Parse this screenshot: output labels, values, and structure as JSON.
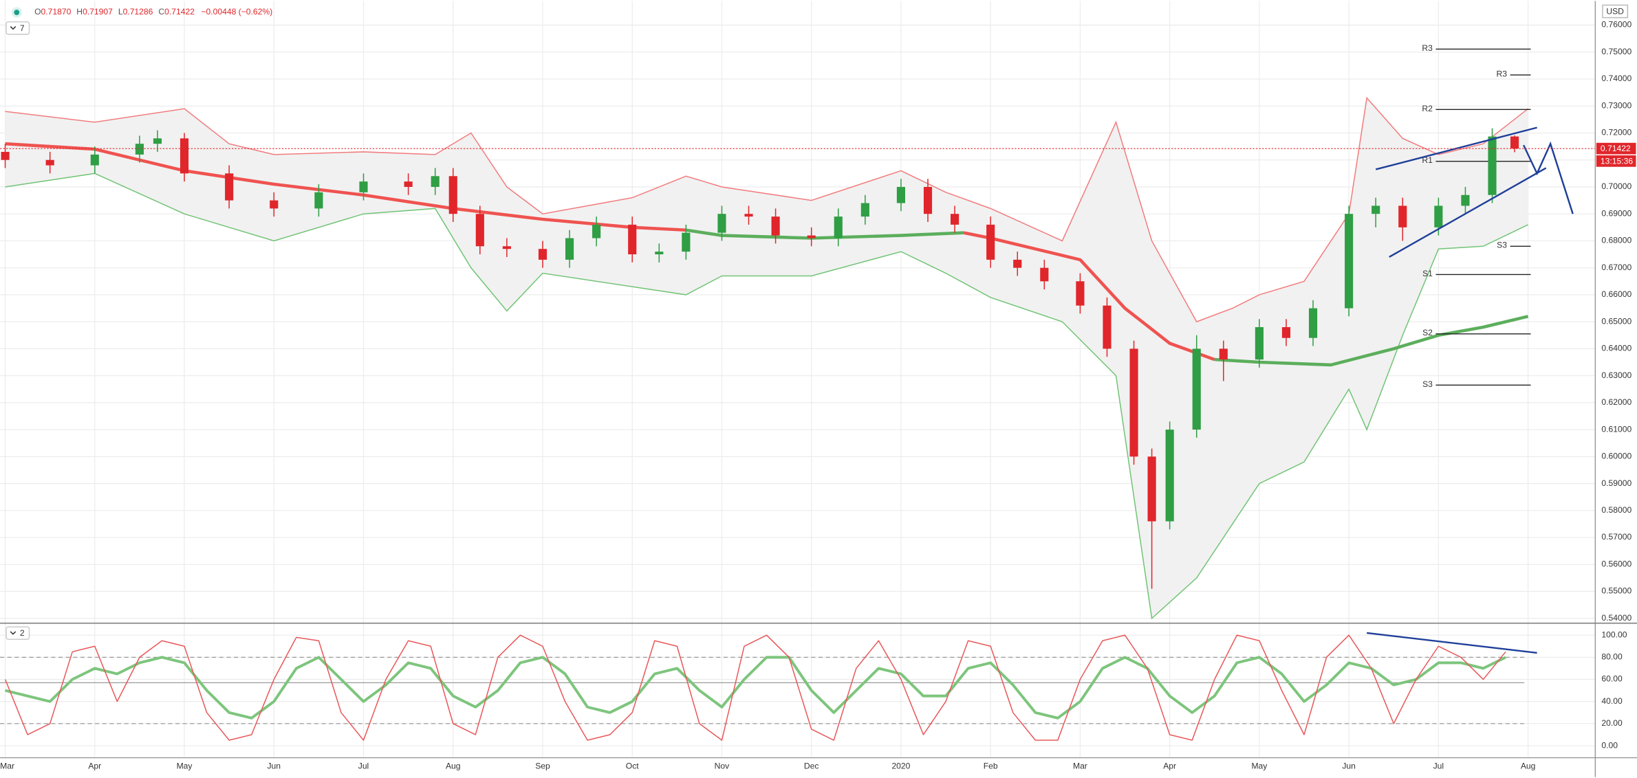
{
  "header": {
    "ohlc": [
      "O",
      "0.71870",
      "H",
      "0.71907",
      "L",
      "0.71286",
      "C",
      "0.71422"
    ],
    "change": "−0.00448 (−0.62%)",
    "top_pane_label": "7",
    "bottom_pane_label": "2",
    "currency": "USD"
  },
  "chart_data": [
    {
      "type": "candlestick",
      "up_color": "#2f9e44",
      "down_color": "#e0262b",
      "xlim": [
        -0.058,
        17.75
      ],
      "xticks": [
        {
          "value": 0,
          "label": "Mar"
        },
        {
          "value": 1,
          "label": "Apr"
        },
        {
          "value": 2,
          "label": "May"
        },
        {
          "value": 3,
          "label": "Jun"
        },
        {
          "value": 4,
          "label": "Jul"
        },
        {
          "value": 5,
          "label": "Aug"
        },
        {
          "value": 6,
          "label": "Sep"
        },
        {
          "value": 7,
          "label": "Oct"
        },
        {
          "value": 8,
          "label": "Nov"
        },
        {
          "value": 9,
          "label": "Dec"
        },
        {
          "value": 10,
          "label": "2020"
        },
        {
          "value": 11,
          "label": "Feb"
        },
        {
          "value": 12,
          "label": "Mar"
        },
        {
          "value": 13,
          "label": "Apr"
        },
        {
          "value": 14,
          "label": "May"
        },
        {
          "value": 15,
          "label": "Jun"
        },
        {
          "value": 16,
          "label": "Jul"
        },
        {
          "value": 17,
          "label": "Aug"
        }
      ],
      "ylim": [
        0.5388,
        0.762
      ],
      "yticks": [
        {
          "value": 0.54,
          "label": "0.54000"
        },
        {
          "value": 0.55,
          "label": "0.55000"
        },
        {
          "value": 0.56,
          "label": "0.56000"
        },
        {
          "value": 0.57,
          "label": "0.57000"
        },
        {
          "value": 0.58,
          "label": "0.58000"
        },
        {
          "value": 0.59,
          "label": "0.59000"
        },
        {
          "value": 0.6,
          "label": "0.60000"
        },
        {
          "value": 0.61,
          "label": "0.61000"
        },
        {
          "value": 0.62,
          "label": "0.62000"
        },
        {
          "value": 0.63,
          "label": "0.63000"
        },
        {
          "value": 0.64,
          "label": "0.64000"
        },
        {
          "value": 0.65,
          "label": "0.65000"
        },
        {
          "value": 0.66,
          "label": "0.66000"
        },
        {
          "value": 0.67,
          "label": "0.67000"
        },
        {
          "value": 0.68,
          "label": "0.68000"
        },
        {
          "value": 0.69,
          "label": "0.69000"
        },
        {
          "value": 0.7,
          "label": "0.70000"
        },
        {
          "value": 0.71,
          "label": "0.71000"
        },
        {
          "value": 0.72,
          "label": "0.72000"
        },
        {
          "value": 0.73,
          "label": "0.73000"
        },
        {
          "value": 0.74,
          "label": "0.74000"
        },
        {
          "value": 0.75,
          "label": "0.75000"
        },
        {
          "value": 0.76,
          "label": "0.76000"
        }
      ],
      "grid": true,
      "x": [
        0,
        0.5,
        1,
        1.5,
        1.7,
        2,
        2.5,
        3,
        3.5,
        4,
        4.5,
        4.8,
        5,
        5.3,
        5.6,
        6,
        6.3,
        6.6,
        7,
        7.3,
        7.6,
        8,
        8.3,
        8.6,
        9,
        9.3,
        9.6,
        10,
        10.3,
        10.6,
        11,
        11.3,
        11.6,
        12,
        12.3,
        12.6,
        12.8,
        13,
        13.3,
        13.6,
        14,
        14.3,
        14.6,
        15,
        15.3,
        15.6,
        16,
        16.3,
        16.6,
        16.85
      ],
      "open": [
        0.713,
        0.71,
        0.708,
        0.712,
        0.716,
        0.718,
        0.705,
        0.695,
        0.692,
        0.698,
        0.702,
        0.7,
        0.704,
        0.69,
        0.678,
        0.677,
        0.673,
        0.681,
        0.686,
        0.675,
        0.676,
        0.683,
        0.69,
        0.689,
        0.682,
        0.681,
        0.689,
        0.694,
        0.7,
        0.69,
        0.686,
        0.673,
        0.67,
        0.665,
        0.656,
        0.64,
        0.6,
        0.576,
        0.61,
        0.64,
        0.636,
        0.648,
        0.644,
        0.655,
        0.69,
        0.693,
        0.685,
        0.693,
        0.697,
        0.7187
      ],
      "high": [
        0.716,
        0.713,
        0.715,
        0.719,
        0.721,
        0.72,
        0.708,
        0.698,
        0.701,
        0.705,
        0.705,
        0.707,
        0.707,
        0.693,
        0.681,
        0.68,
        0.684,
        0.689,
        0.689,
        0.679,
        0.686,
        0.693,
        0.693,
        0.692,
        0.685,
        0.692,
        0.697,
        0.703,
        0.703,
        0.693,
        0.689,
        0.676,
        0.673,
        0.668,
        0.659,
        0.643,
        0.603,
        0.613,
        0.645,
        0.643,
        0.651,
        0.651,
        0.658,
        0.693,
        0.696,
        0.696,
        0.696,
        0.7,
        0.7217,
        0.71907
      ],
      "low": [
        0.707,
        0.705,
        0.705,
        0.709,
        0.713,
        0.702,
        0.692,
        0.689,
        0.689,
        0.695,
        0.697,
        0.697,
        0.687,
        0.675,
        0.674,
        0.67,
        0.67,
        0.678,
        0.672,
        0.672,
        0.673,
        0.68,
        0.686,
        0.679,
        0.678,
        0.678,
        0.686,
        0.691,
        0.687,
        0.683,
        0.67,
        0.667,
        0.662,
        0.653,
        0.637,
        0.597,
        0.551,
        0.573,
        0.607,
        0.628,
        0.633,
        0.641,
        0.641,
        0.652,
        0.685,
        0.68,
        0.682,
        0.69,
        0.694,
        0.71286
      ],
      "close": [
        0.71,
        0.708,
        0.712,
        0.716,
        0.718,
        0.705,
        0.695,
        0.692,
        0.698,
        0.702,
        0.7,
        0.704,
        0.69,
        0.678,
        0.677,
        0.673,
        0.681,
        0.686,
        0.675,
        0.676,
        0.683,
        0.69,
        0.689,
        0.682,
        0.681,
        0.689,
        0.694,
        0.7,
        0.69,
        0.686,
        0.673,
        0.67,
        0.665,
        0.656,
        0.64,
        0.6,
        0.576,
        0.61,
        0.64,
        0.636,
        0.648,
        0.644,
        0.655,
        0.69,
        0.693,
        0.685,
        0.693,
        0.697,
        0.7187,
        0.71422
      ],
      "bands": {
        "fill": "#f1f1f1",
        "x": [
          0,
          1,
          2,
          2.5,
          3,
          4,
          4.8,
          5.2,
          5.6,
          6,
          7,
          7.6,
          8,
          9,
          10,
          10.5,
          11,
          11.8,
          12.4,
          12.8,
          13.3,
          13.7,
          14,
          14.5,
          15,
          15.2,
          15.6,
          16,
          16.5,
          17
        ],
        "upper": {
          "color": "#f27c7e",
          "values": [
            0.728,
            0.724,
            0.729,
            0.716,
            0.712,
            0.713,
            0.712,
            0.72,
            0.7,
            0.69,
            0.696,
            0.704,
            0.7,
            0.695,
            0.706,
            0.698,
            0.692,
            0.68,
            0.724,
            0.68,
            0.65,
            0.655,
            0.66,
            0.665,
            0.69,
            0.733,
            0.718,
            0.712,
            0.716,
            0.729
          ]
        },
        "lower": {
          "color": "#72c476",
          "values": [
            0.7,
            0.705,
            0.69,
            0.685,
            0.68,
            0.69,
            0.692,
            0.67,
            0.654,
            0.668,
            0.663,
            0.66,
            0.667,
            0.667,
            0.676,
            0.668,
            0.659,
            0.65,
            0.63,
            0.54,
            0.555,
            0.575,
            0.59,
            0.598,
            0.625,
            0.61,
            0.645,
            0.677,
            0.678,
            0.686
          ]
        }
      },
      "ma": {
        "x": [
          0,
          1,
          2,
          3,
          4,
          5,
          6,
          7,
          7.6,
          8,
          9,
          10,
          10.7,
          11,
          12,
          12.5,
          13,
          13.5,
          14,
          14.8,
          15.5,
          16,
          16.5,
          17
        ],
        "series": [
          {
            "color": "#ef5350",
            "values": [
              0.716,
              0.714,
              0.706,
              0.701,
              0.697,
              0.692,
              0.688,
              0.685,
              0.684,
              null,
              null,
              null,
              0.683,
              0.681,
              0.673,
              0.655,
              0.642,
              0.636,
              null,
              null,
              null,
              null,
              null,
              null
            ]
          },
          {
            "color": "#5cae5c",
            "values": [
              null,
              null,
              null,
              null,
              null,
              null,
              null,
              null,
              0.684,
              0.682,
              0.681,
              0.682,
              0.683,
              null,
              null,
              null,
              null,
              0.636,
              0.635,
              0.634,
              0.64,
              0.645,
              0.648,
              0.652
            ]
          }
        ]
      },
      "pivots": [
        {
          "label": "R3",
          "value": 0.7511,
          "x": [
            15.97,
            17.03
          ]
        },
        {
          "label": "R3",
          "value": 0.7415,
          "x": [
            16.8,
            17.03
          ]
        },
        {
          "label": "R2",
          "value": 0.7287,
          "x": [
            15.97,
            17.03
          ]
        },
        {
          "label": "R1",
          "value": 0.7095,
          "x": [
            15.97,
            17.03
          ]
        },
        {
          "label": "S3",
          "value": 0.678,
          "x": [
            16.8,
            17.03
          ]
        },
        {
          "label": "S1",
          "value": 0.6675,
          "x": [
            15.97,
            17.03
          ]
        },
        {
          "label": "S2",
          "value": 0.6455,
          "x": [
            15.97,
            17.03
          ]
        },
        {
          "label": "S3",
          "value": 0.6265,
          "x": [
            15.97,
            17.03
          ]
        }
      ],
      "drawings": {
        "color": "#1f3f99",
        "lines": [
          [
            [
              15.3,
              0.7065
            ],
            [
              17.1,
              0.722
            ]
          ],
          [
            [
              15.45,
              0.674
            ],
            [
              17.2,
              0.707
            ]
          ],
          [
            [
              16.95,
              0.7155
            ],
            [
              17.1,
              0.705
            ],
            [
              17.25,
              0.716
            ],
            [
              17.5,
              0.69
            ]
          ]
        ]
      },
      "last": {
        "value": 0.71422,
        "label": "0.71422",
        "countdown": "13:15:36",
        "color": "#e0262b"
      }
    },
    {
      "type": "line",
      "ylim": [
        -10.4,
        109.4
      ],
      "yticks": [
        {
          "value": 0,
          "label": "0.00"
        },
        {
          "value": 20,
          "label": "20.00"
        },
        {
          "value": 40,
          "label": "40.00"
        },
        {
          "value": 60,
          "label": "60.00"
        },
        {
          "value": 80,
          "label": "80.00"
        },
        {
          "value": 100,
          "label": "100.00"
        }
      ],
      "hlines": [
        {
          "value": 80,
          "dashed": true
        },
        {
          "value": 57,
          "dashed": false
        },
        {
          "value": 20,
          "dashed": true
        }
      ],
      "x": [
        0,
        0.25,
        0.5,
        0.75,
        1,
        1.25,
        1.5,
        1.75,
        2,
        2.25,
        2.5,
        2.75,
        3,
        3.25,
        3.5,
        3.75,
        4,
        4.25,
        4.5,
        4.75,
        5,
        5.25,
        5.5,
        5.75,
        6,
        6.25,
        6.5,
        6.75,
        7,
        7.25,
        7.5,
        7.75,
        8,
        8.25,
        8.5,
        8.75,
        9,
        9.25,
        9.5,
        9.75,
        10,
        10.25,
        10.5,
        10.75,
        11,
        11.25,
        11.5,
        11.75,
        12,
        12.25,
        12.5,
        12.75,
        13,
        13.25,
        13.5,
        13.75,
        14,
        14.25,
        14.5,
        14.75,
        15,
        15.25,
        15.5,
        15.75,
        16,
        16.25,
        16.5,
        16.75
      ],
      "series": [
        {
          "color": "#7dc57d",
          "values": [
            50,
            45,
            40,
            60,
            70,
            65,
            75,
            80,
            75,
            50,
            30,
            25,
            40,
            70,
            80,
            60,
            40,
            55,
            75,
            70,
            45,
            35,
            50,
            75,
            80,
            65,
            35,
            30,
            40,
            65,
            70,
            50,
            35,
            60,
            80,
            80,
            50,
            30,
            50,
            70,
            65,
            45,
            45,
            70,
            75,
            55,
            30,
            25,
            40,
            70,
            80,
            70,
            45,
            30,
            45,
            75,
            80,
            65,
            40,
            55,
            75,
            70,
            55,
            60,
            75,
            75,
            70,
            80
          ]
        },
        {
          "color": "#e8585a",
          "values": [
            60,
            10,
            20,
            85,
            90,
            40,
            80,
            95,
            90,
            30,
            5,
            10,
            60,
            98,
            95,
            30,
            5,
            60,
            95,
            90,
            20,
            10,
            80,
            100,
            90,
            40,
            5,
            10,
            30,
            95,
            90,
            20,
            5,
            90,
            100,
            80,
            15,
            5,
            70,
            95,
            60,
            10,
            40,
            95,
            90,
            30,
            5,
            5,
            60,
            95,
            100,
            70,
            10,
            5,
            60,
            100,
            95,
            50,
            10,
            80,
            100,
            70,
            20,
            60,
            90,
            80,
            60,
            85
          ]
        }
      ],
      "drawings": {
        "color": "#1f3f99",
        "lines": [
          [
            [
              15.2,
              102
            ],
            [
              17.1,
              84
            ]
          ]
        ]
      }
    }
  ]
}
